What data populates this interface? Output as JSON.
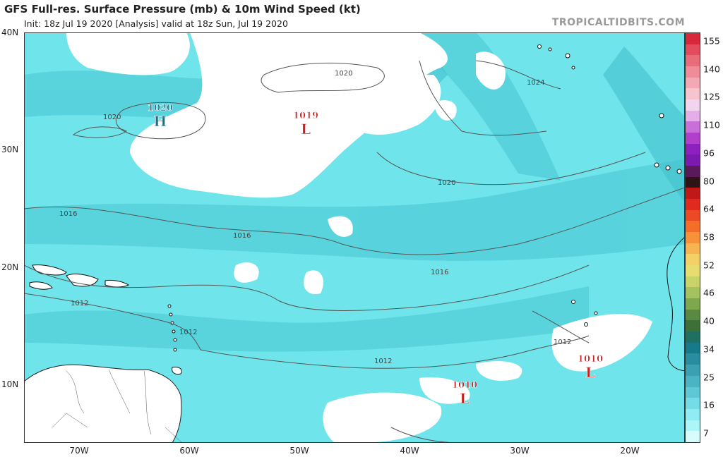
{
  "title": "GFS Full-res. Surface Pressure (mb) & 10m Wind Speed (kt)",
  "subtitle": "Init: 18z Jul 19 2020   [Analysis]   valid at 18z Sun, Jul 19 2020",
  "brand": "TROPICALTIDBITS.COM",
  "axes": {
    "lat_labels": [
      "40N",
      "30N",
      "20N",
      "10N"
    ],
    "lon_labels": [
      "70W",
      "60W",
      "50W",
      "40W",
      "30W",
      "20W"
    ]
  },
  "isobars": [
    "1020",
    "1020",
    "1020",
    "1024",
    "1016",
    "1016",
    "1016",
    "1012",
    "1012",
    "1012",
    "1012"
  ],
  "pressure_centers": [
    {
      "type": "H",
      "value": "1020",
      "color": "#1e6f86"
    },
    {
      "type": "L",
      "value": "1019",
      "color": "#c8201e"
    },
    {
      "type": "L",
      "value": "1010",
      "color": "#c8201e"
    },
    {
      "type": "L",
      "value": "1010",
      "color": "#c8201e"
    }
  ],
  "colorbar": {
    "labels": [
      "155",
      "140",
      "125",
      "110",
      "96",
      "80",
      "64",
      "58",
      "52",
      "46",
      "40",
      "34",
      "25",
      "16",
      "7"
    ],
    "colors": [
      "#d8283c",
      "#e24c5c",
      "#e96c7a",
      "#f08c98",
      "#f4a8b4",
      "#f5c4cf",
      "#f2d4ef",
      "#e4aee8",
      "#c870d8",
      "#b040cc",
      "#8e20c0",
      "#7a1aae",
      "#5a1a5a",
      "#2e1414",
      "#c01818",
      "#e02a20",
      "#ec4a24",
      "#f46e2a",
      "#f89238",
      "#f8b450",
      "#f4d068",
      "#e6dc70",
      "#c8d468",
      "#a4c25e",
      "#7ea84e",
      "#5a8a42",
      "#3c7036",
      "#1f7060",
      "#177a8a",
      "#2a8ca0",
      "#3aa0b2",
      "#4ab4c4",
      "#5ec8d6",
      "#74dce6",
      "#8eecf2",
      "#aaf6f8",
      "#d8fcfc"
    ]
  }
}
